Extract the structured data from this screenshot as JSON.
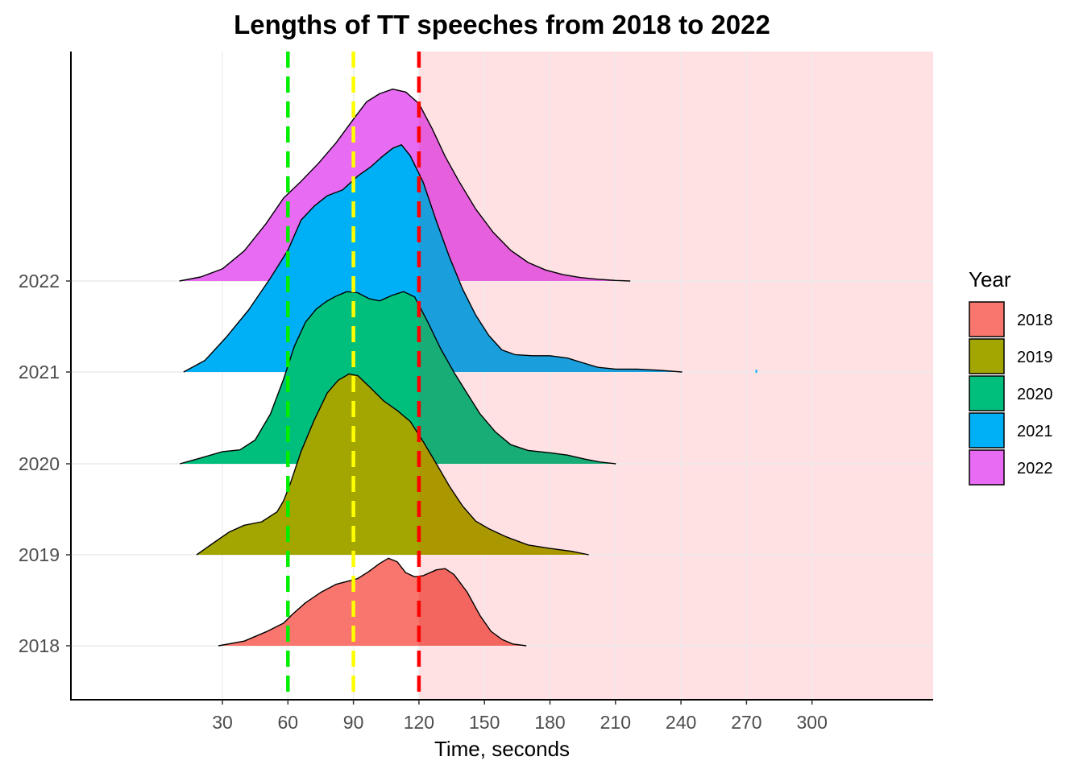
{
  "chart_data": {
    "type": "ridgeline",
    "title": "Lengths of TT speeches from 2018 to 2022",
    "xlabel": "Time, seconds",
    "ylabel": "",
    "xlim": [
      -4,
      326
    ],
    "x_ticks": [
      30,
      60,
      90,
      120,
      150,
      180,
      210,
      240,
      270,
      300
    ],
    "x_tick_labels": [
      "30",
      "60",
      "90",
      "120",
      "150",
      "180",
      "210",
      "240",
      "270",
      "300"
    ],
    "y_tick_labels": [
      "2018",
      "2019",
      "2020",
      "2021",
      "2022"
    ],
    "legend": {
      "title": "Year",
      "placement": "right",
      "entries": [
        "2018",
        "2019",
        "2020",
        "2021",
        "2022"
      ]
    },
    "shaded_region": {
      "from": 120,
      "color": "#ffe1e4"
    },
    "reference_lines": [
      {
        "x": 60,
        "color": "#00ee00",
        "style": "dashed"
      },
      {
        "x": 90,
        "color": "#ffff00",
        "style": "dashed"
      },
      {
        "x": 120,
        "color": "#ff0000",
        "style": "dashed"
      }
    ],
    "grid": true,
    "series": [
      {
        "name": "2018",
        "color": "#f8766d",
        "color_beyond": "#f3665f",
        "density": [
          [
            28.2,
            0
          ],
          [
            40,
            0.08
          ],
          [
            50,
            0.24
          ],
          [
            58,
            0.39
          ],
          [
            62,
            0.54
          ],
          [
            68,
            0.74
          ],
          [
            75,
            0.92
          ],
          [
            82,
            1.06
          ],
          [
            88,
            1.12
          ],
          [
            92,
            1.16
          ],
          [
            97,
            1.28
          ],
          [
            102,
            1.42
          ],
          [
            106,
            1.51
          ],
          [
            110,
            1.45
          ],
          [
            114,
            1.26
          ],
          [
            118,
            1.19
          ],
          [
            122,
            1.21
          ],
          [
            128,
            1.31
          ],
          [
            132,
            1.33
          ],
          [
            136,
            1.23
          ],
          [
            142,
            0.93
          ],
          [
            148,
            0.52
          ],
          [
            153,
            0.25
          ],
          [
            158,
            0.11
          ],
          [
            163,
            0.03
          ],
          [
            169.2,
            0
          ]
        ]
      },
      {
        "name": "2019",
        "color": "#a3a500",
        "color_beyond": "#ab9700",
        "density": [
          [
            18.2,
            0
          ],
          [
            25,
            0.18
          ],
          [
            33,
            0.39
          ],
          [
            40,
            0.51
          ],
          [
            48,
            0.57
          ],
          [
            55,
            0.74
          ],
          [
            58,
            0.93
          ],
          [
            61,
            1.22
          ],
          [
            66,
            1.78
          ],
          [
            72,
            2.32
          ],
          [
            78,
            2.79
          ],
          [
            83,
            3.01
          ],
          [
            88,
            3.12
          ],
          [
            92,
            3.09
          ],
          [
            97,
            2.91
          ],
          [
            104,
            2.65
          ],
          [
            110,
            2.49
          ],
          [
            116,
            2.3
          ],
          [
            122,
            1.95
          ],
          [
            128,
            1.57
          ],
          [
            134,
            1.18
          ],
          [
            140,
            0.84
          ],
          [
            146,
            0.58
          ],
          [
            152,
            0.45
          ],
          [
            160,
            0.31
          ],
          [
            170,
            0.17
          ],
          [
            180,
            0.11
          ],
          [
            190,
            0.06
          ],
          [
            197.8,
            0
          ]
        ]
      },
      {
        "name": "2020",
        "color": "#00bf7d",
        "color_beyond": "#18ac77",
        "density": [
          [
            10.5,
            0
          ],
          [
            20,
            0.1
          ],
          [
            30,
            0.21
          ],
          [
            38,
            0.24
          ],
          [
            45,
            0.41
          ],
          [
            52,
            0.86
          ],
          [
            58,
            1.46
          ],
          [
            63,
            2.03
          ],
          [
            68,
            2.44
          ],
          [
            73,
            2.67
          ],
          [
            78,
            2.81
          ],
          [
            82,
            2.89
          ],
          [
            87,
            2.97
          ],
          [
            92,
            2.95
          ],
          [
            97,
            2.85
          ],
          [
            102,
            2.81
          ],
          [
            108,
            2.91
          ],
          [
            113,
            2.97
          ],
          [
            118,
            2.88
          ],
          [
            124,
            2.45
          ],
          [
            130,
            1.98
          ],
          [
            136,
            1.58
          ],
          [
            142,
            1.22
          ],
          [
            148,
            0.86
          ],
          [
            155,
            0.55
          ],
          [
            162,
            0.33
          ],
          [
            170,
            0.23
          ],
          [
            180,
            0.19
          ],
          [
            188,
            0.15
          ],
          [
            196,
            0.08
          ],
          [
            203,
            0.03
          ],
          [
            210.2,
            0
          ]
        ]
      },
      {
        "name": "2021",
        "color": "#00b0f6",
        "color_beyond": "#1a9edc",
        "density": [
          [
            12.2,
            0
          ],
          [
            22,
            0.2
          ],
          [
            32,
            0.61
          ],
          [
            42,
            1.07
          ],
          [
            52,
            1.62
          ],
          [
            60,
            2.1
          ],
          [
            66,
            2.62
          ],
          [
            72,
            2.86
          ],
          [
            78,
            3.04
          ],
          [
            85,
            3.14
          ],
          [
            92,
            3.38
          ],
          [
            98,
            3.54
          ],
          [
            103,
            3.71
          ],
          [
            108,
            3.86
          ],
          [
            112,
            3.92
          ],
          [
            116,
            3.73
          ],
          [
            122,
            3.27
          ],
          [
            128,
            2.6
          ],
          [
            134,
            1.98
          ],
          [
            140,
            1.43
          ],
          [
            146,
            0.98
          ],
          [
            152,
            0.63
          ],
          [
            158,
            0.38
          ],
          [
            164,
            0.3
          ],
          [
            172,
            0.28
          ],
          [
            180,
            0.28
          ],
          [
            188,
            0.24
          ],
          [
            195,
            0.16
          ],
          [
            202,
            0.08
          ],
          [
            210,
            0.05
          ],
          [
            220,
            0.05
          ],
          [
            230,
            0.03
          ],
          [
            240.5,
            0
          ]
        ]
      },
      {
        "name": "2022",
        "color": "#e76bf3",
        "color_beyond": "#e65fdd",
        "density": [
          [
            10.3,
            0
          ],
          [
            20,
            0.07
          ],
          [
            30,
            0.21
          ],
          [
            40,
            0.52
          ],
          [
            50,
            0.99
          ],
          [
            58,
            1.43
          ],
          [
            66,
            1.72
          ],
          [
            74,
            2.03
          ],
          [
            82,
            2.38
          ],
          [
            90,
            2.79
          ],
          [
            96,
            3.09
          ],
          [
            102,
            3.23
          ],
          [
            108,
            3.31
          ],
          [
            114,
            3.26
          ],
          [
            120,
            3.06
          ],
          [
            126,
            2.63
          ],
          [
            132,
            2.15
          ],
          [
            138,
            1.74
          ],
          [
            146,
            1.24
          ],
          [
            154,
            0.84
          ],
          [
            162,
            0.53
          ],
          [
            170,
            0.32
          ],
          [
            178,
            0.19
          ],
          [
            186,
            0.11
          ],
          [
            194,
            0.06
          ],
          [
            202,
            0.03
          ],
          [
            210,
            0.01
          ],
          [
            216.8,
            0
          ]
        ]
      }
    ],
    "outliers": [
      {
        "series": "2021",
        "x": 274.5
      }
    ]
  }
}
